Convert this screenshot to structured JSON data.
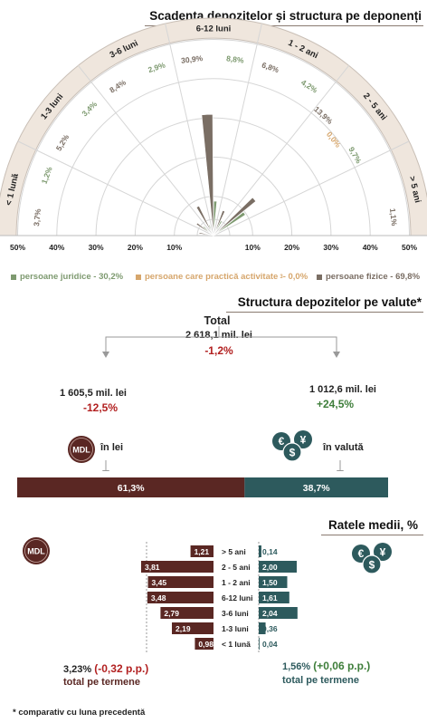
{
  "polar": {
    "title": "Scadența depozitelor și structura pe deponenți",
    "sectors": [
      "< 1 lună",
      "1-3 luni",
      "3-6 luni",
      "6-12 luni",
      "1 - 2 ani",
      "2 - 5 ani",
      "> 5 ani"
    ],
    "axis_ticks": [
      "50%",
      "40%",
      "30%",
      "20%",
      "10%",
      "10%",
      "20%",
      "30%",
      "40%",
      "50%"
    ],
    "legend": [
      {
        "label": "persoane juridice - 30,2%",
        "color": "#7e9a70"
      },
      {
        "label": "persoane care practică activitate",
        "sup": "3",
        "tail": " - 0,0%",
        "color": "#d6a66c"
      },
      {
        "label": "persoane fizice - 69,8%",
        "color": "#7a6e64"
      }
    ],
    "colors": {
      "juridice": "#7e9a70",
      "activitate": "#d6a66c",
      "fizice": "#7a6e64",
      "band": "#efe6dd"
    }
  },
  "chart_data": [
    {
      "type": "polar-bar",
      "title": "Scadența depozitelor și structura pe deponenți",
      "categories": [
        "< 1 lună",
        "1-3 luni",
        "3-6 luni",
        "6-12 luni",
        "1 - 2 ani",
        "2 - 5 ani",
        "> 5 ani"
      ],
      "series": [
        {
          "name": "persoane juridice - 30,2%",
          "values": [
            1.2,
            3.4,
            2.9,
            8.8,
            4.2,
            9.7,
            null
          ]
        },
        {
          "name": "persoane care practică activitate - 0,0%",
          "values": [
            null,
            null,
            null,
            null,
            null,
            0.0,
            null
          ]
        },
        {
          "name": "persoane fizice - 69,8%",
          "values": [
            3.7,
            5.2,
            8.4,
            30.9,
            6.8,
            13.9,
            1.1
          ]
        }
      ],
      "value_labels": [
        [
          "1,2%",
          "3,7%"
        ],
        [
          "3,4%",
          "5,2%"
        ],
        [
          "2,9%",
          "8,4%"
        ],
        [
          "8,8%",
          "30,9%"
        ],
        [
          "4,2%",
          "6,8%"
        ],
        [
          "9,7%",
          "0,0%",
          "13,9%"
        ],
        [
          "1,1%"
        ]
      ],
      "rlim": [
        0,
        50
      ]
    },
    {
      "type": "bar",
      "title": "Structura depozitelor pe valute*",
      "categories": [
        "în lei",
        "în valută"
      ],
      "values": [
        61.3,
        38.7
      ],
      "value_labels": [
        "61,3%",
        "38,7%"
      ]
    },
    {
      "type": "bar",
      "title": "Ratele medii, %",
      "categories": [
        "> 5 ani",
        "2 - 5 ani",
        "1 - 2 ani",
        "6-12 luni",
        "3-6 luni",
        "1-3 luni",
        "< 1 lună"
      ],
      "series": [
        {
          "name": "MDL",
          "values": [
            1.21,
            3.81,
            3.45,
            3.48,
            2.79,
            2.19,
            0.98
          ],
          "labels": [
            "1,21",
            "3,81",
            "3,45",
            "3,48",
            "2,79",
            "2,19",
            "0,98"
          ]
        },
        {
          "name": "valută",
          "values": [
            0.14,
            2.0,
            1.5,
            1.61,
            2.04,
            0.36,
            0.04
          ],
          "labels": [
            "0,14",
            "2,00",
            "1,50",
            "1,61",
            "2,04",
            "0,36",
            "0,04"
          ]
        }
      ]
    }
  ],
  "currency": {
    "title": "Structura depozitelor pe valute*",
    "total_label": "Total",
    "total_value": "2 618,1 mil. lei",
    "total_change": "-1,2%",
    "lei_value": "1 605,5 mil. lei",
    "lei_change": "-12,5%",
    "fx_value": "1 012,6 mil. lei",
    "fx_change": "+24,5%",
    "lei_label": "în lei",
    "fx_label": "în valută",
    "mdl_badge": "MDL",
    "lei_share": "61,3%",
    "fx_share": "38,7%",
    "colors": {
      "lei": "#5a2723",
      "fx": "#2d5a5d",
      "neg": "#b22020",
      "pos": "#3e7e3a"
    }
  },
  "rates": {
    "title": "Ratele medii, %",
    "mdl_badge": "MDL",
    "mdl_total": "3,23%",
    "mdl_change": "(-0,32 p.p.)",
    "mdl_total_label": "total pe termene",
    "fx_total": "1,56%",
    "fx_change": "(+0,06 p.p.)",
    "fx_total_label": "total pe termene"
  },
  "footnote": "* comparativ cu luna precedentă"
}
